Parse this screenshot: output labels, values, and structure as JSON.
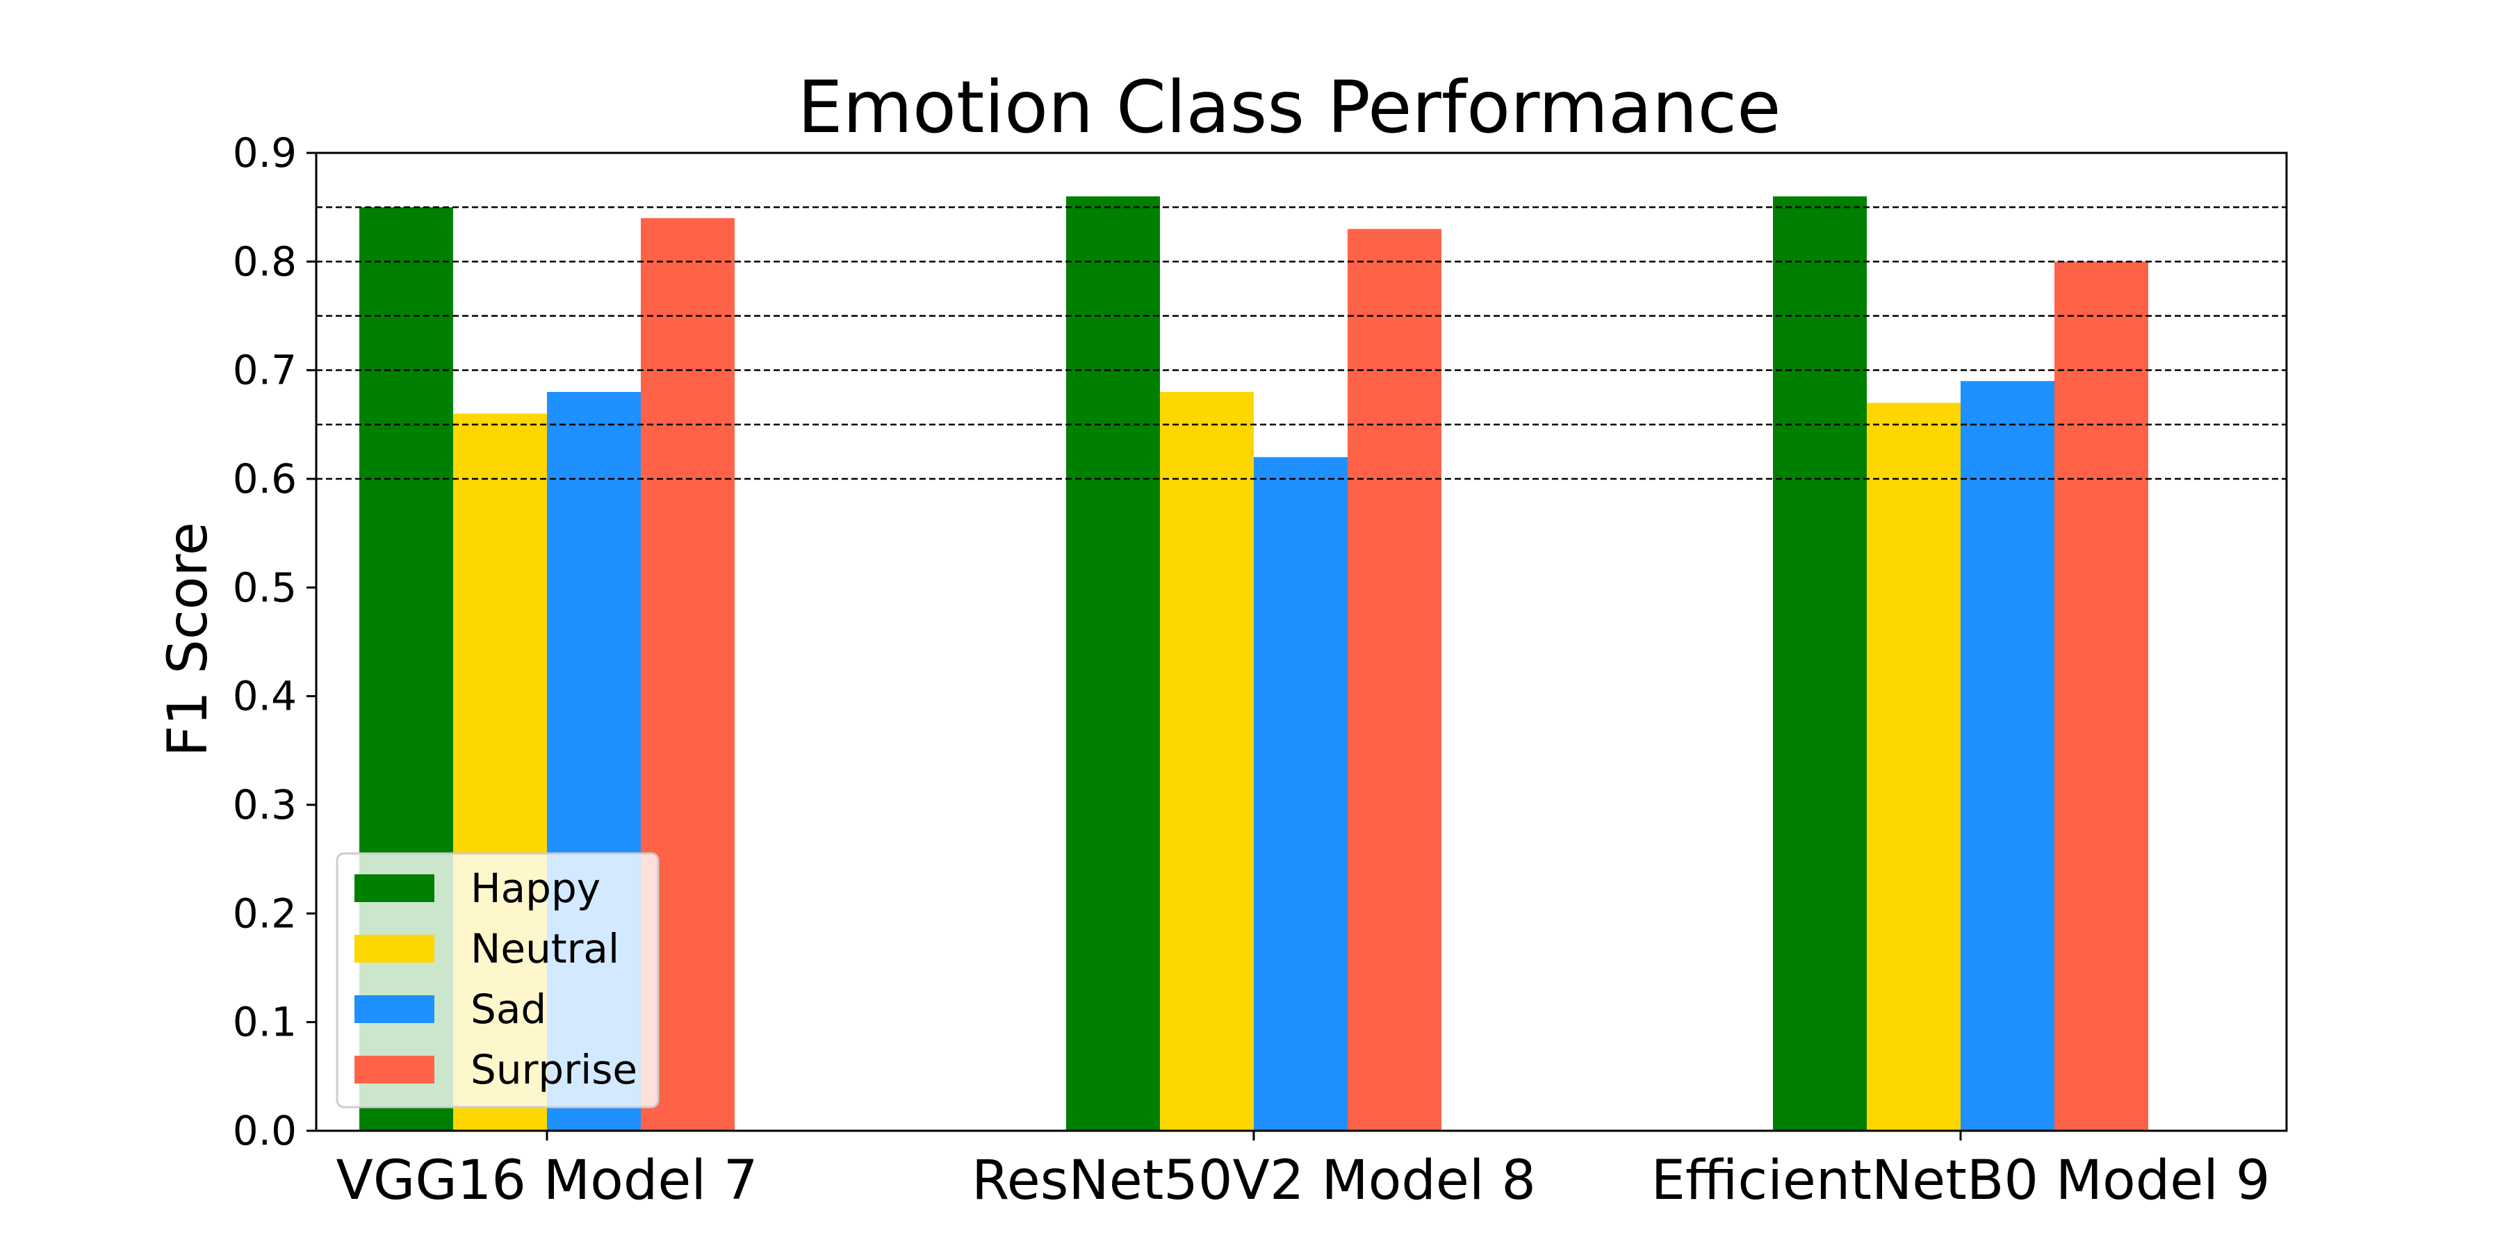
{
  "chart_data": {
    "type": "bar",
    "title": "Emotion Class Performance",
    "xlabel": "",
    "ylabel": "F1 Score",
    "categories": [
      "VGG16 Model 7",
      "ResNet50V2 Model 8",
      "EfficientNetB0 Model 9"
    ],
    "series": [
      {
        "name": "Happy",
        "color": "#008000",
        "values": [
          0.85,
          0.86,
          0.86
        ]
      },
      {
        "name": "Neutral",
        "color": "#FFD700",
        "values": [
          0.66,
          0.68,
          0.67
        ]
      },
      {
        "name": "Sad",
        "color": "#1E90FF",
        "values": [
          0.68,
          0.62,
          0.69
        ]
      },
      {
        "name": "Surprise",
        "color": "#FF6347",
        "values": [
          0.84,
          0.83,
          0.8
        ]
      }
    ],
    "ylim": [
      0.0,
      0.9
    ],
    "yticks": [
      "0.0",
      "0.1",
      "0.2",
      "0.3",
      "0.4",
      "0.5",
      "0.6",
      "0.7",
      "0.8",
      "0.9"
    ],
    "reference_lines": [
      0.6,
      0.65,
      0.7,
      0.75,
      0.8,
      0.85
    ],
    "legend_position": "lower-left",
    "grid": false
  }
}
